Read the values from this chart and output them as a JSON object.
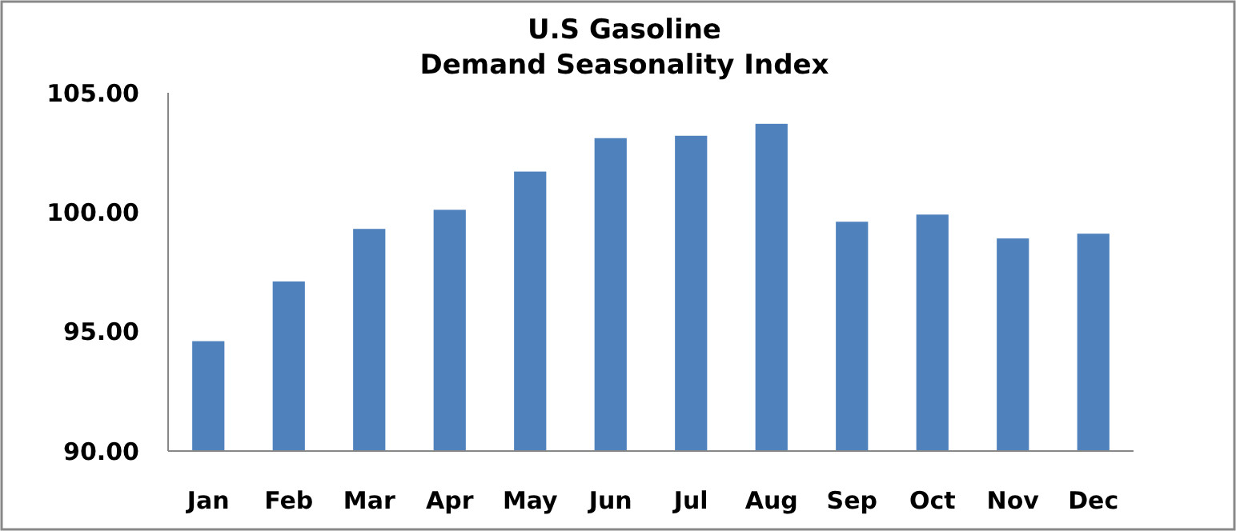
{
  "chart_data": {
    "type": "bar",
    "title": "U.S Gasoline\nDemand Seasonality Index",
    "categories": [
      "Jan",
      "Feb",
      "Mar",
      "Apr",
      "May",
      "Jun",
      "Jul",
      "Aug",
      "Sep",
      "Oct",
      "Nov",
      "Dec"
    ],
    "values": [
      94.6,
      97.1,
      99.3,
      100.1,
      101.7,
      103.1,
      103.2,
      103.7,
      99.6,
      99.9,
      98.9,
      99.1
    ],
    "color": "#4f81bd",
    "ylim": [
      90,
      105
    ],
    "yticks": [
      {
        "value": 90,
        "label": "90.00"
      },
      {
        "value": 95,
        "label": "95.00"
      },
      {
        "value": 100,
        "label": "100.00"
      },
      {
        "value": 105,
        "label": "105.00"
      }
    ],
    "grid": false
  }
}
